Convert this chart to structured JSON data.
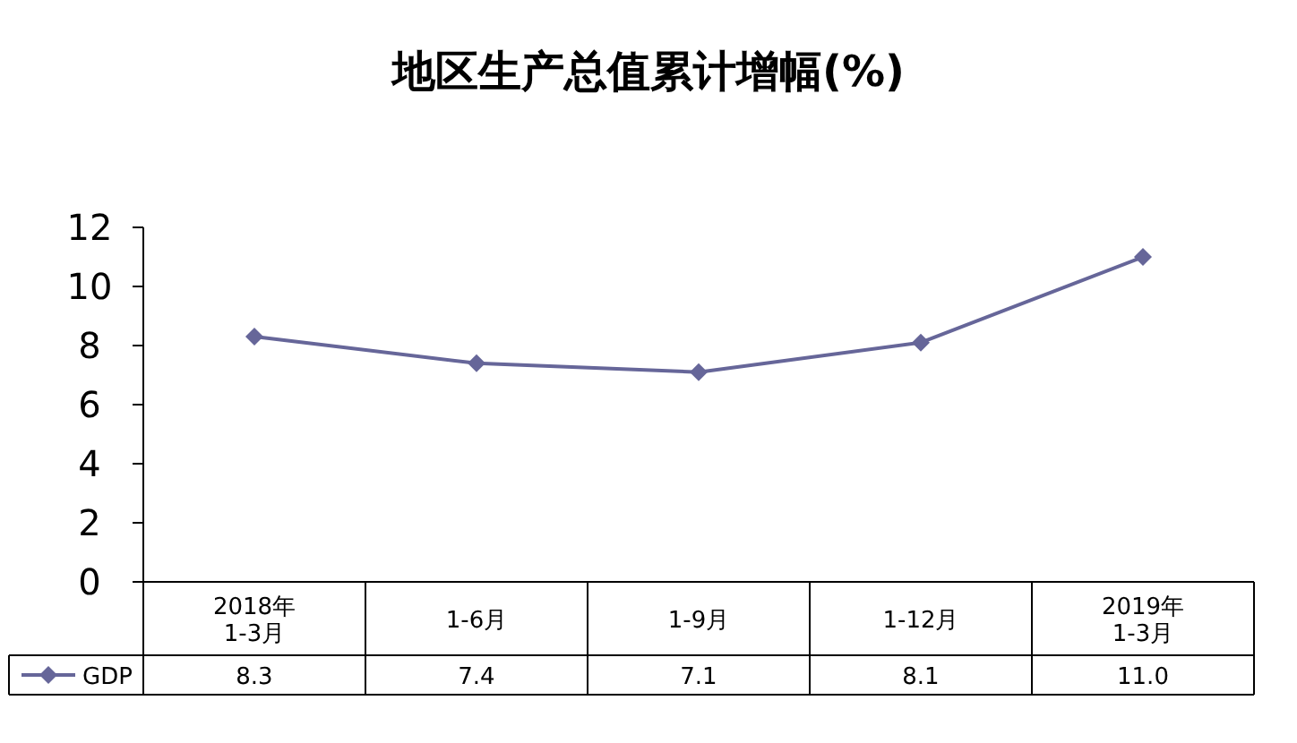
{
  "chart_data": {
    "type": "line",
    "title": "地区生产总值累计增幅(%)",
    "categories": [
      "2018年\n1-3月",
      "1-6月",
      "1-9月",
      "1-12月",
      "2019年\n1-3月"
    ],
    "series": [
      {
        "name": "GDP",
        "color": "#666699",
        "values": [
          8.3,
          7.4,
          7.1,
          8.1,
          11.0
        ],
        "value_labels": [
          "8.3",
          "7.4",
          "7.1",
          "8.1",
          "11.0"
        ]
      }
    ],
    "ylim": [
      0,
      12
    ],
    "yticks": [
      0,
      2,
      4,
      6,
      8,
      10,
      12
    ],
    "grid": false,
    "legend": "bottom",
    "marker": "diamond",
    "line_style": "solid"
  }
}
